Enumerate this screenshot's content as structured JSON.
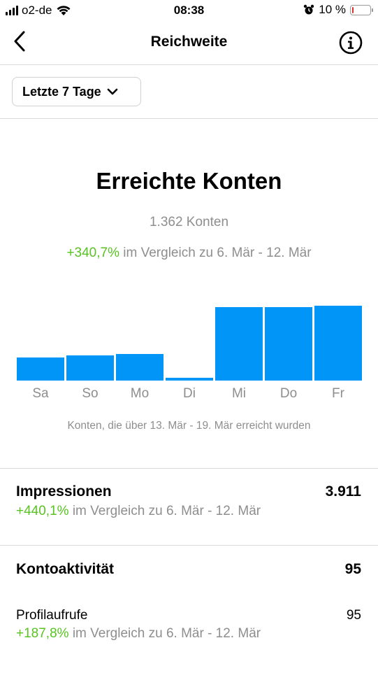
{
  "status_bar": {
    "carrier": "o2-de",
    "time": "08:38",
    "battery": "10 %",
    "battery_level": 0.1,
    "icons": [
      "signal-icon",
      "wifi-icon",
      "alarm-icon",
      "battery-icon"
    ]
  },
  "nav": {
    "title": "Reichweite",
    "back_icon": "chevron-left-icon",
    "info_icon": "info-icon"
  },
  "filter": {
    "label": "Letzte 7 Tage",
    "icon": "chevron-down-icon"
  },
  "reach": {
    "title": "Erreichte Konten",
    "count": "1.362 Konten",
    "change": "+340,7%",
    "compare_text": " im Vergleich zu 6. Mär - 12. Mär",
    "caption": "Konten, die über 13. Mär - 19. Mär erreicht wurden"
  },
  "chart_data": {
    "type": "bar",
    "categories": [
      "Sa",
      "So",
      "Mo",
      "Di",
      "Mi",
      "Do",
      "Fr"
    ],
    "values": [
      32,
      35,
      37,
      4,
      102,
      102,
      104
    ],
    "ylim": [
      0,
      130
    ],
    "grid": false,
    "color": "#0095f6"
  },
  "impressions": {
    "label": "Impressionen",
    "value": "3.911",
    "change": "+440,1%",
    "compare_text": " im Vergleich zu 6. Mär - 12. Mär"
  },
  "activity": {
    "label": "Kontoaktivität",
    "value": "95",
    "items": [
      {
        "label": "Profilaufrufe",
        "value": "95",
        "change": "+187,8%",
        "compare_text": " im Vergleich zu 6. Mär - 12. Mär"
      }
    ]
  },
  "colors": {
    "accent": "#0095f6",
    "positive": "#58c322",
    "muted": "#8e8e8e",
    "divider": "#dbdbdb",
    "battery_low": "#e0302a"
  }
}
